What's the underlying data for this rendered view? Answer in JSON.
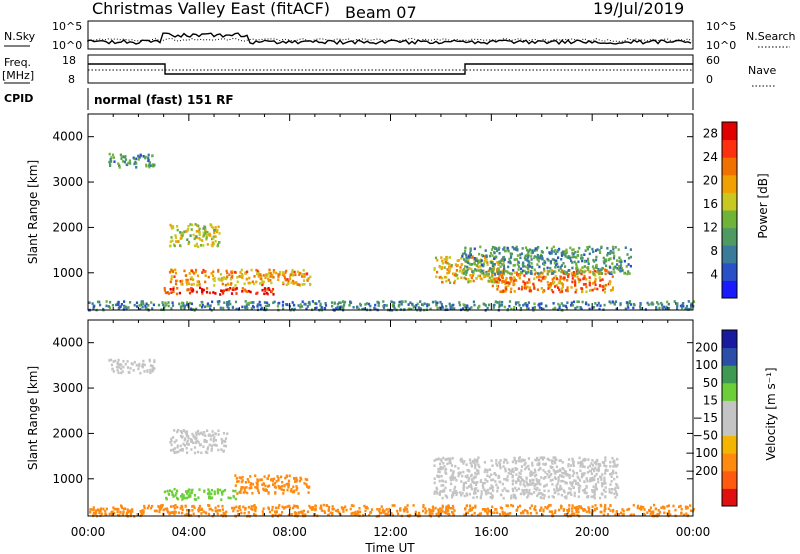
{
  "header": {
    "title": "Christmas Valley East (fitACF)",
    "beam": "Beam 07",
    "date": "19/Jul/2019"
  },
  "status_panels": {
    "nsky_label": "N.Sky",
    "nsky_ticks": [
      "10^5",
      "10^0"
    ],
    "nsearch_label": "N.Search",
    "nsearch_ticks": [
      "10^5",
      "10^0"
    ],
    "freq_label": "Freq.",
    "freq_unit": "[MHz]",
    "freq_ticks": [
      "18",
      "8"
    ],
    "nave_label": "Nave",
    "nave_ticks": [
      "60",
      "0"
    ],
    "cpid_label": "CPID",
    "cpid_value": "normal (fast) 151 RF"
  },
  "colors": {
    "power_scale": [
      "#1a1aff",
      "#2a50c8",
      "#3a7a9a",
      "#4e9a62",
      "#6fb338",
      "#c8c820",
      "#f0a000",
      "#f07000",
      "#ff3010",
      "#e00000"
    ],
    "velocity_scale": [
      "#e01010",
      "#ff5a10",
      "#ff8a10",
      "#f5b400",
      "#c4c4c4",
      "#c4c4c4",
      "#6ccf3a",
      "#3e9a52",
      "#2b4fa8",
      "#1a1a9e"
    ]
  },
  "chart_data": [
    {
      "type": "heatmap",
      "name": "power",
      "xlabel": "Time UT",
      "ylabel": "Slant Range [km]",
      "x_ticks": [
        "00:00",
        "04:00",
        "08:00",
        "12:00",
        "16:00",
        "20:00",
        "00:00"
      ],
      "x_range_hours": [
        0,
        24
      ],
      "y_range_km": [
        180,
        4500
      ],
      "y_ticks": [
        1000,
        2000,
        3000,
        4000
      ],
      "colorbar_label": "Power [dB]",
      "colorbar_ticks": [
        4,
        8,
        12,
        16,
        20,
        24,
        28
      ],
      "colorbar_range": [
        0,
        30
      ],
      "echo_regions": [
        {
          "t": [
            3.0,
            7.5
          ],
          "r": [
            550,
            700
          ],
          "value": 26
        },
        {
          "t": [
            3.2,
            8.8
          ],
          "r": [
            750,
            1100
          ],
          "value": 20
        },
        {
          "t": [
            3.2,
            5.2
          ],
          "r": [
            1600,
            2100
          ],
          "value": 16
        },
        {
          "t": [
            0.8,
            2.6
          ],
          "r": [
            3350,
            3650
          ],
          "value": 10
        },
        {
          "t": [
            13.7,
            16.5
          ],
          "r": [
            800,
            1400
          ],
          "value": 18
        },
        {
          "t": [
            16.0,
            20.8
          ],
          "r": [
            600,
            1100
          ],
          "value": 22
        },
        {
          "t": [
            14.8,
            21.5
          ],
          "r": [
            1000,
            1600
          ],
          "value": 10
        },
        {
          "t": [
            0.0,
            24.0
          ],
          "r": [
            200,
            400
          ],
          "value": 8
        }
      ]
    },
    {
      "type": "heatmap",
      "name": "velocity",
      "xlabel": "Time UT",
      "ylabel": "Slant Range [km]",
      "x_ticks": [
        "00:00",
        "04:00",
        "08:00",
        "12:00",
        "16:00",
        "20:00",
        "00:00"
      ],
      "x_range_hours": [
        0,
        24
      ],
      "y_range_km": [
        180,
        4500
      ],
      "y_ticks": [
        1000,
        2000,
        3000,
        4000
      ],
      "colorbar_label": "Velocity [m s⁻¹]",
      "colorbar_ticks": [
        "200",
        "100",
        "50",
        "15",
        "−15",
        "−50",
        "−100",
        "−200"
      ],
      "echo_regions": [
        {
          "t": [
            3.0,
            6.0
          ],
          "r": [
            550,
            800
          ],
          "value": 40
        },
        {
          "t": [
            5.8,
            8.8
          ],
          "r": [
            700,
            1100
          ],
          "value": -60
        },
        {
          "t": [
            3.2,
            5.5
          ],
          "r": [
            1600,
            2100
          ],
          "value": 0
        },
        {
          "t": [
            0.8,
            2.6
          ],
          "r": [
            3350,
            3650
          ],
          "value": 0
        },
        {
          "t": [
            13.7,
            21.0
          ],
          "r": [
            600,
            1500
          ],
          "value": 0
        },
        {
          "t": [
            0.0,
            24.0
          ],
          "r": [
            200,
            450
          ],
          "value": -70
        }
      ]
    }
  ]
}
